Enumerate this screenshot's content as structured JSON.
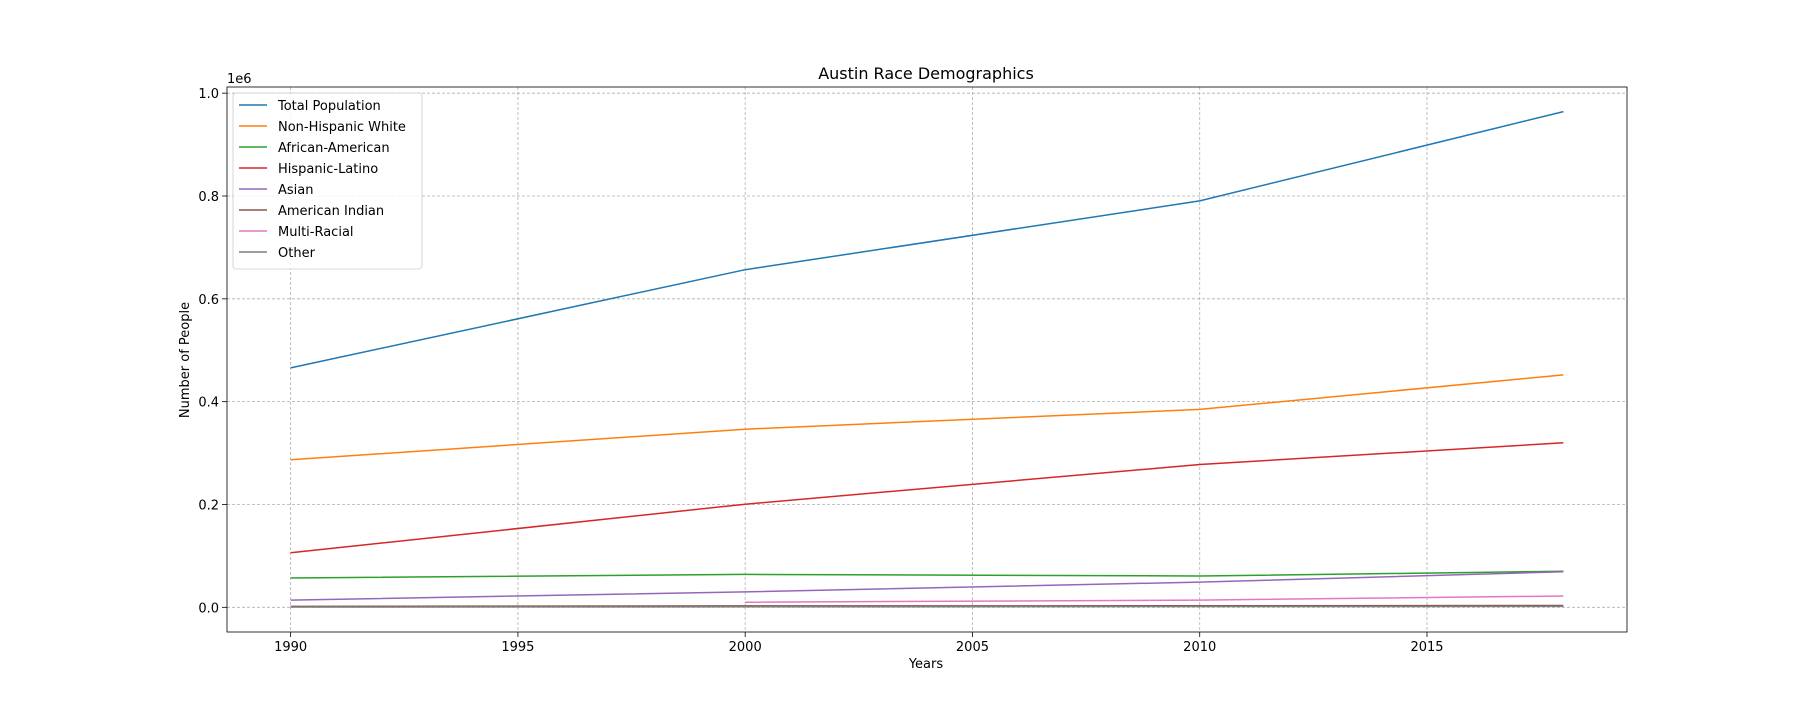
{
  "chart_data": {
    "type": "line",
    "title": "Austin Race Demographics",
    "xlabel": "Years",
    "ylabel": "Number of People",
    "y_offset_label": "1e6",
    "xlim": [
      1988.6,
      2019.4
    ],
    "ylim": [
      -48000,
      1012000
    ],
    "x_ticks": [
      1990,
      1995,
      2000,
      2005,
      2010,
      2015
    ],
    "y_ticks": [
      0,
      200000,
      400000,
      600000,
      800000,
      1000000
    ],
    "y_tick_labels": [
      "0.0",
      "0.2",
      "0.4",
      "0.6",
      "0.8",
      "1.0"
    ],
    "grid": true,
    "legend_position": "upper-left",
    "series": [
      {
        "name": "Total Population",
        "color": "#1f77b4",
        "points": [
          [
            1990,
            465600
          ],
          [
            2000,
            656600
          ],
          [
            2010,
            790400
          ],
          [
            2018,
            964200
          ]
        ]
      },
      {
        "name": "Non-Hispanic White",
        "color": "#ff7f0e",
        "points": [
          [
            1990,
            287000
          ],
          [
            2000,
            346500
          ],
          [
            2010,
            385000
          ],
          [
            2018,
            452000
          ]
        ]
      },
      {
        "name": "African-American",
        "color": "#2ca02c",
        "points": [
          [
            1990,
            57000
          ],
          [
            2000,
            64000
          ],
          [
            2010,
            61000
          ],
          [
            2018,
            70000
          ]
        ]
      },
      {
        "name": "Hispanic-Latino",
        "color": "#d62728",
        "points": [
          [
            1990,
            106000
          ],
          [
            2000,
            200600
          ],
          [
            2010,
            277700
          ],
          [
            2018,
            320000
          ]
        ]
      },
      {
        "name": "Asian",
        "color": "#9467bd",
        "points": [
          [
            1990,
            14000
          ],
          [
            2000,
            30000
          ],
          [
            2010,
            49000
          ],
          [
            2018,
            69000
          ]
        ]
      },
      {
        "name": "American Indian",
        "color": "#8c564b",
        "points": [
          [
            1990,
            1700
          ],
          [
            2000,
            2800
          ],
          [
            2010,
            3000
          ],
          [
            2018,
            3500
          ]
        ]
      },
      {
        "name": "Multi-Racial",
        "color": "#e377c2",
        "points": [
          [
            2000,
            10000
          ],
          [
            2010,
            14000
          ],
          [
            2018,
            22000
          ]
        ]
      },
      {
        "name": "Other",
        "color": "#7f7f7f",
        "points": [
          [
            1990,
            700
          ],
          [
            2000,
            1100
          ],
          [
            2010,
            1500
          ],
          [
            2018,
            1800
          ]
        ]
      }
    ]
  }
}
